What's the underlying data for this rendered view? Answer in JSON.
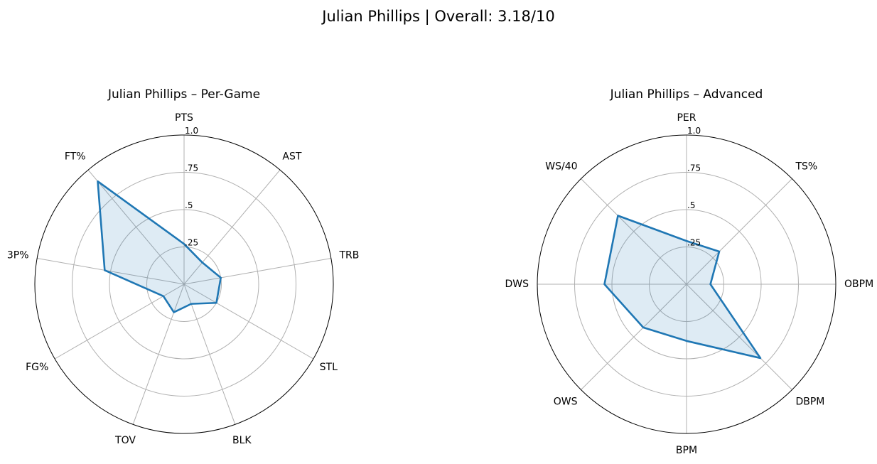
{
  "figure": {
    "suptitle": "Julian Phillips | Overall: 3.18/10"
  },
  "style": {
    "line_color": "#1f77b4",
    "fill_color": "#1f77b4",
    "fill_opacity": 0.15,
    "grid_color": "#b0b0b0",
    "frame_color": "#000000"
  },
  "chart_data": [
    {
      "type": "radar",
      "title": "Julian Phillips – Per-Game",
      "rlim": [
        0,
        1
      ],
      "rticks": [
        0.25,
        0.5,
        0.75,
        1.0
      ],
      "rtick_labels": [
        ".25",
        ".5",
        ".75",
        "1.0"
      ],
      "grid": true,
      "categories": [
        "PTS",
        "AST",
        "TRB",
        "STL",
        "BLK",
        "TOV",
        "FG%",
        "3P%",
        "FT%"
      ],
      "values": [
        0.27,
        0.19,
        0.25,
        0.25,
        0.14,
        0.2,
        0.16,
        0.54,
        0.9
      ]
    },
    {
      "type": "radar",
      "title": "Julian Phillips – Advanced",
      "rlim": [
        0,
        1
      ],
      "rticks": [
        0.25,
        0.5,
        0.75,
        1.0
      ],
      "rtick_labels": [
        ".25",
        ".5",
        ".75",
        "1.0"
      ],
      "grid": true,
      "categories": [
        "PER",
        "TS%",
        "OBPM",
        "DBPM",
        "BPM",
        "OWS",
        "DWS",
        "WS/40"
      ],
      "values": [
        0.29,
        0.31,
        0.16,
        0.7,
        0.38,
        0.41,
        0.55,
        0.65
      ]
    }
  ]
}
